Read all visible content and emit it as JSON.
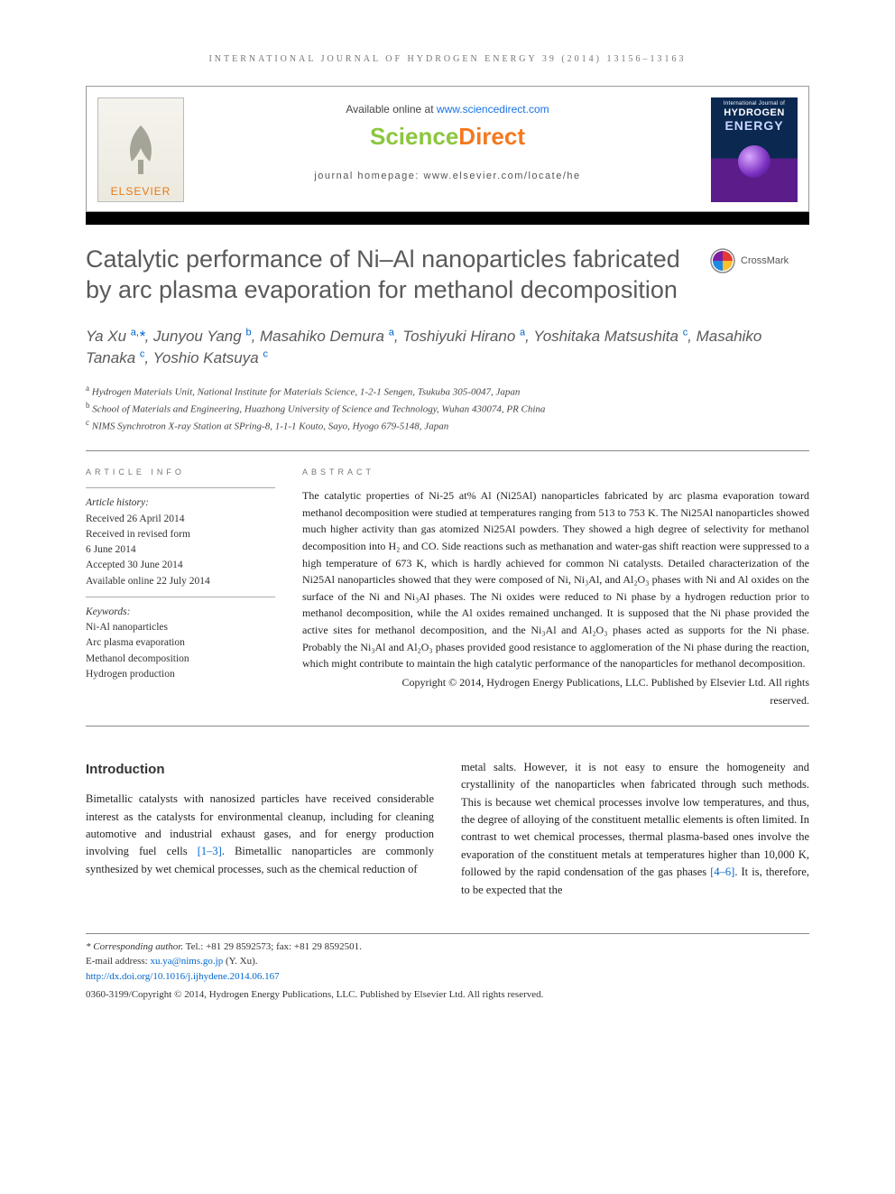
{
  "running_head": "INTERNATIONAL JOURNAL OF HYDROGEN ENERGY 39 (2014) 13156–13163",
  "header": {
    "available_prefix": "Available online at ",
    "available_link": "www.sciencedirect.com",
    "sd_part1": "Science",
    "sd_part2": "Direct",
    "journal_homepage": "journal homepage: www.elsevier.com/locate/he",
    "elsevier_label": "ELSEVIER",
    "cover_line1": "International Journal of",
    "cover_line2": "HYDROGEN",
    "cover_line3": "ENERGY"
  },
  "crossmark_label": "CrossMark",
  "title": "Catalytic performance of Ni–Al nanoparticles fabricated by arc plasma evaporation for methanol decomposition",
  "authors_html": "Ya Xu <sup>a,</sup><span class='ast'>*</span>, Junyou Yang <sup>b</sup>, Masahiko Demura <sup>a</sup>, Toshiyuki Hirano <sup>a</sup>, Yoshitaka Matsushita <sup>c</sup>, Masahiko Tanaka <sup>c</sup>, Yoshio Katsuya <sup>c</sup>",
  "affiliations": [
    "a Hydrogen Materials Unit, National Institute for Materials Science, 1-2-1 Sengen, Tsukuba 305-0047, Japan",
    "b School of Materials and Engineering, Huazhong University of Science and Technology, Wuhan 430074, PR China",
    "c NIMS Synchrotron X-ray Station at SPring-8, 1-1-1 Kouto, Sayo, Hyogo 679-5148, Japan"
  ],
  "article_info": {
    "head": "ARTICLE INFO",
    "history_label": "Article history:",
    "history": [
      "Received 26 April 2014",
      "Received in revised form",
      "6 June 2014",
      "Accepted 30 June 2014",
      "Available online 22 July 2014"
    ],
    "keywords_label": "Keywords:",
    "keywords": [
      "Ni-Al nanoparticles",
      "Arc plasma evaporation",
      "Methanol decomposition",
      "Hydrogen production"
    ]
  },
  "abstract": {
    "head": "ABSTRACT",
    "text": "The catalytic properties of Ni-25 at% Al (Ni25Al) nanoparticles fabricated by arc plasma evaporation toward methanol decomposition were studied at temperatures ranging from 513 to 753 K. The Ni25Al nanoparticles showed much higher activity than gas atomized Ni25Al powders. They showed a high degree of selectivity for methanol decomposition into H₂ and CO. Side reactions such as methanation and water-gas shift reaction were suppressed to a high temperature of 673 K, which is hardly achieved for common Ni catalysts. Detailed characterization of the Ni25Al nanoparticles showed that they were composed of Ni, Ni₃Al, and Al₂O₃ phases with Ni and Al oxides on the surface of the Ni and Ni₃Al phases. The Ni oxides were reduced to Ni phase by a hydrogen reduction prior to methanol decomposition, while the Al oxides remained unchanged. It is supposed that the Ni phase provided the active sites for methanol decomposition, and the Ni₃Al and Al₂O₃ phases acted as supports for the Ni phase. Probably the Ni₃Al and Al₂O₃ phases provided good resistance to agglomeration of the Ni phase during the reaction, which might contribute to maintain the high catalytic performance of the nanoparticles for methanol decomposition.",
    "copyright1": "Copyright © 2014, Hydrogen Energy Publications, LLC. Published by Elsevier Ltd. All rights",
    "copyright2": "reserved."
  },
  "body": {
    "intro_head": "Introduction",
    "col1": "Bimetallic catalysts with nanosized particles have received considerable interest as the catalysts for environmental cleanup, including for cleaning automotive and industrial exhaust gases, and for energy production involving fuel cells ",
    "col1_ref": "[1–3]",
    "col1_tail": ". Bimetallic nanoparticles are commonly synthesized by wet chemical processes, such as the chemical reduction of",
    "col2": "metal salts. However, it is not easy to ensure the homogeneity and crystallinity of the nanoparticles when fabricated through such methods. This is because wet chemical processes involve low temperatures, and thus, the degree of alloying of the constituent metallic elements is often limited. In contrast to wet chemical processes, thermal plasma-based ones involve the evaporation of the constituent metals at temperatures higher than 10,000 K, followed by the rapid condensation of the gas phases ",
    "col2_ref": "[4–6]",
    "col2_tail": ". It is, therefore, to be expected that the"
  },
  "footnotes": {
    "corr_label": "* Corresponding author.",
    "corr_text": " Tel.: +81 29 8592573; fax: +81 29 8592501.",
    "email_label": "E-mail address: ",
    "email": "xu.ya@nims.go.jp",
    "email_tail": " (Y. Xu).",
    "doi": "http://dx.doi.org/10.1016/j.ijhydene.2014.06.167",
    "issn": "0360-3199/Copyright © 2014, Hydrogen Energy Publications, LLC. Published by Elsevier Ltd. All rights reserved."
  },
  "colors": {
    "link": "#0066cc",
    "sd_green": "#8cc63f",
    "sd_orange": "#f47920",
    "elsevier_orange": "#e67817",
    "title_gray": "#5a5a5a"
  }
}
